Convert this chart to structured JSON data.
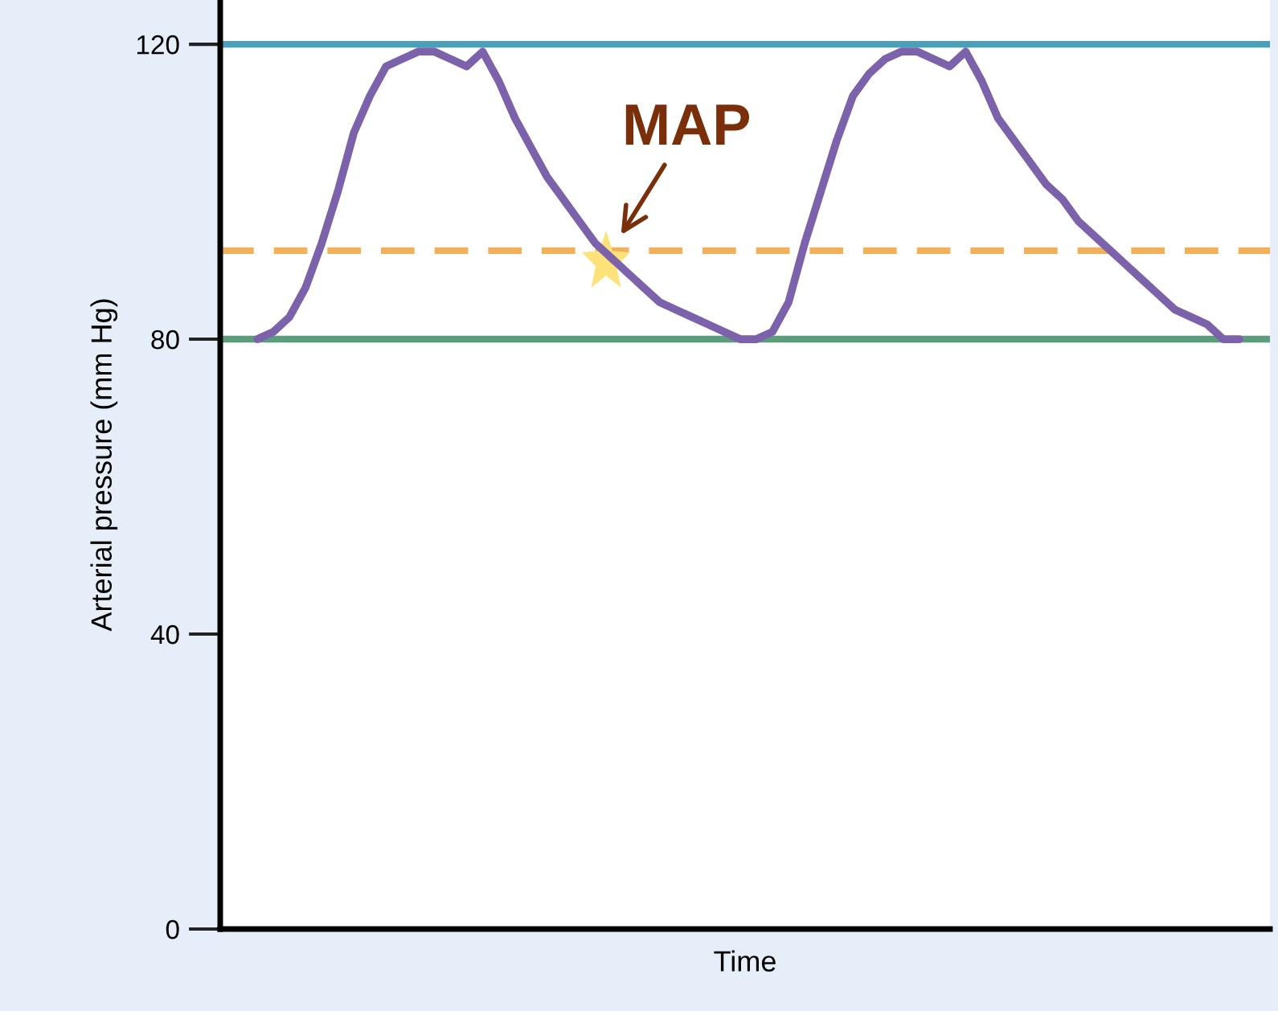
{
  "chart_data": {
    "type": "line",
    "xlabel": "Time",
    "ylabel": "Arterial pressure (mm Hg)",
    "categories": [
      null,
      null,
      null,
      null,
      null,
      null,
      null,
      null,
      null,
      null,
      null,
      null,
      null,
      null,
      null,
      null,
      null,
      null,
      null,
      null,
      null,
      null,
      null,
      null,
      null,
      null,
      null,
      null,
      null,
      null,
      null,
      null,
      null,
      null,
      null,
      null,
      null,
      null,
      null,
      null,
      null,
      null,
      null,
      null,
      null,
      null,
      null,
      null,
      null,
      null,
      null,
      null,
      null,
      null,
      null,
      null,
      null,
      null,
      null,
      null,
      null,
      null
    ],
    "series": [
      {
        "color": "#7b62aa",
        "values": [
          80,
          81,
          83,
          87,
          93,
          100,
          108,
          113,
          117,
          118,
          119,
          119,
          118,
          117,
          119,
          115,
          110,
          106,
          102,
          99,
          96,
          93,
          91,
          89,
          87,
          85,
          84,
          83,
          82,
          81,
          80,
          80,
          81,
          85,
          93,
          100,
          107,
          113,
          116,
          118,
          119,
          119,
          118,
          117,
          119,
          115,
          110,
          107,
          104,
          101,
          99,
          96,
          94,
          92,
          90,
          88,
          86,
          84,
          83,
          82,
          80,
          80
        ]
      }
    ],
    "ylim": [
      0,
      126
    ],
    "yticks": [
      0,
      40,
      80,
      120
    ],
    "grid": false,
    "legend": false,
    "line_style": "solid",
    "marker": "none",
    "ref_lines": [
      {
        "axis": "y",
        "value": 120,
        "color": "#4aa0b8",
        "line_style": "solid"
      },
      {
        "axis": "y",
        "value": 80,
        "color": "#5e9c7e",
        "line_style": "solid"
      },
      {
        "axis": "y",
        "value": 92,
        "color": "#f2b05a",
        "line_style": "dashed"
      }
    ],
    "annotations": [
      "MAP"
    ]
  }
}
